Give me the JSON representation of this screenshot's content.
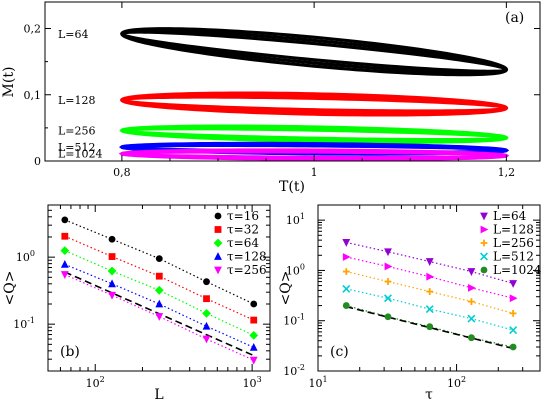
{
  "chart_data": [
    {
      "id": "a",
      "type": "line",
      "panel_label": "(a)",
      "xlabel": "T(t)",
      "ylabel": "M(t)",
      "xlim": [
        0.72,
        1.235
      ],
      "ylim": [
        0,
        0.24
      ],
      "xticks": [
        0.8,
        1,
        1.2
      ],
      "xtick_labels": [
        "0,8",
        "1",
        "1,2"
      ],
      "yticks": [
        0,
        0.1,
        0.2
      ],
      "ytick_labels": [
        "0",
        "0,1",
        "0,2"
      ],
      "series": [
        {
          "name": "L=64",
          "color": "#000000",
          "center_T": 1.0,
          "half_width_T": 0.2,
          "M_left": 0.192,
          "M_right": 0.138,
          "half_thickness_M": 0.017
        },
        {
          "name": "L=128",
          "color": "#ff0000",
          "center_T": 1.0,
          "half_width_T": 0.2,
          "M_left": 0.092,
          "M_right": 0.08,
          "half_thickness_M": 0.012
        },
        {
          "name": "L=256",
          "color": "#00ff00",
          "center_T": 1.0,
          "half_width_T": 0.2,
          "M_left": 0.046,
          "M_right": 0.035,
          "half_thickness_M": 0.0085
        },
        {
          "name": "L=512",
          "color": "#0000ff",
          "center_T": 1.0,
          "half_width_T": 0.2,
          "M_left": 0.021,
          "M_right": 0.016,
          "half_thickness_M": 0.006
        },
        {
          "name": "L=1024",
          "color": "#ff00ff",
          "center_T": 1.0,
          "half_width_T": 0.2,
          "M_left": 0.011,
          "M_right": 0.008,
          "half_thickness_M": 0.0055
        }
      ]
    },
    {
      "id": "b",
      "type": "scatter",
      "panel_label": "(b)",
      "xlabel": "L",
      "ylabel": "<Q>",
      "xscale": "log",
      "yscale": "log",
      "xlim": [
        50,
        1300
      ],
      "ylim": [
        0.02,
        6
      ],
      "xticks": [
        100,
        1000
      ],
      "yticks": [
        0.1,
        1
      ],
      "legend_position": "top-right",
      "x": [
        64,
        128,
        256,
        512,
        1024
      ],
      "series": [
        {
          "name": "τ=16",
          "color": "#000000",
          "marker": "circle",
          "values": [
            3.6,
            1.85,
            0.95,
            0.43,
            0.2
          ]
        },
        {
          "name": "τ=32",
          "color": "#ff0000",
          "marker": "square",
          "values": [
            2.05,
            1.02,
            0.52,
            0.24,
            0.115
          ]
        },
        {
          "name": "τ=64",
          "color": "#00ff00",
          "marker": "diamond",
          "values": [
            1.25,
            0.62,
            0.32,
            0.145,
            0.068
          ]
        },
        {
          "name": "τ=128",
          "color": "#0000ff",
          "marker": "triangle-up",
          "values": [
            0.78,
            0.4,
            0.2,
            0.093,
            0.045
          ]
        },
        {
          "name": "τ=256",
          "color": "#ff00ff",
          "marker": "triangle-down",
          "values": [
            0.55,
            0.27,
            0.13,
            0.06,
            0.029
          ]
        }
      ],
      "fit_line": {
        "style": "dashed",
        "color": "#000000",
        "x": [
          64,
          1024
        ],
        "y": [
          0.6,
          0.034
        ]
      }
    },
    {
      "id": "c",
      "type": "scatter",
      "panel_label": "(c)",
      "xlabel": "τ",
      "ylabel": "<Q>",
      "xscale": "log",
      "yscale": "log",
      "xlim": [
        10,
        400
      ],
      "ylim": [
        0.01,
        20
      ],
      "xticks": [
        10,
        100
      ],
      "yticks": [
        0.01,
        0.1,
        1,
        10
      ],
      "legend_position": "top-right",
      "x": [
        16,
        32,
        64,
        128,
        256
      ],
      "series": [
        {
          "name": "L=64",
          "color": "#9400d3",
          "marker": "triangle-down",
          "values": [
            3.6,
            2.35,
            1.5,
            0.95,
            0.55
          ]
        },
        {
          "name": "L=128",
          "color": "#ff00ff",
          "marker": "triangle-right",
          "values": [
            1.85,
            1.2,
            0.75,
            0.45,
            0.28
          ]
        },
        {
          "name": "L=256",
          "color": "#ffa500",
          "marker": "plus",
          "values": [
            0.95,
            0.6,
            0.38,
            0.24,
            0.14
          ]
        },
        {
          "name": "L=512",
          "color": "#00ced1",
          "marker": "x",
          "values": [
            0.43,
            0.28,
            0.17,
            0.11,
            0.065
          ]
        },
        {
          "name": "L=1024",
          "color": "#228b22",
          "marker": "circle",
          "values": [
            0.2,
            0.12,
            0.076,
            0.046,
            0.03
          ]
        }
      ],
      "fit_line": {
        "style": "dashed",
        "color": "#000000",
        "x": [
          16,
          256
        ],
        "y": [
          0.19,
          0.028
        ]
      }
    }
  ]
}
